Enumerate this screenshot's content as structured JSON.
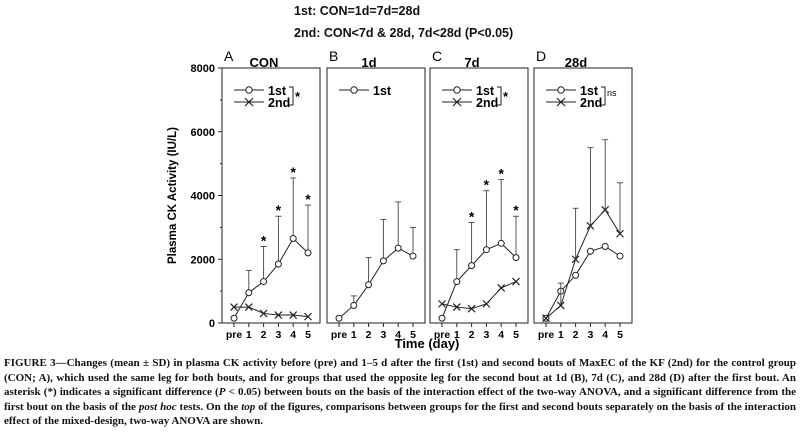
{
  "comparisons": {
    "line1": "1st: CON=1d=7d=28d",
    "line2": "2nd: CON<7d & 28d, 7d<28d (P<0.05)"
  },
  "chart_data": {
    "type": "line",
    "ylabel": "Plasma CK Activity (IU/L)",
    "xlabel": "Time (day)",
    "ylim": [
      0,
      8000
    ],
    "yticks": [
      "0",
      "2000",
      "4000",
      "6000",
      "8000"
    ],
    "xticks": [
      "pre",
      "1",
      "2",
      "3",
      "4",
      "5"
    ],
    "panels": [
      {
        "letter": "A",
        "title": "CON",
        "legend": [
          "1st",
          "2nd"
        ],
        "legend_mark": "*",
        "series": [
          {
            "name": "1st",
            "marker": "circle",
            "values": [
              150,
              950,
              1300,
              1850,
              2650,
              2200
            ],
            "sd": [
              0,
              700,
              1100,
              1500,
              1900,
              1500
            ],
            "stars": [
              false,
              false,
              true,
              true,
              true,
              true
            ]
          },
          {
            "name": "2nd",
            "marker": "cross",
            "values": [
              500,
              500,
              300,
              250,
              250,
              200
            ],
            "sd": [
              0,
              0,
              0,
              0,
              0,
              0
            ],
            "stars": [
              false,
              false,
              false,
              false,
              false,
              false
            ]
          }
        ]
      },
      {
        "letter": "B",
        "title": "1d",
        "legend": [
          "1st"
        ],
        "legend_mark": "",
        "series": [
          {
            "name": "1st",
            "marker": "circle",
            "values": [
              150,
              550,
              1200,
              1950,
              2350,
              2100
            ],
            "sd": [
              0,
              300,
              850,
              1300,
              1450,
              900
            ],
            "stars": [
              false,
              false,
              false,
              false,
              false,
              false
            ]
          }
        ]
      },
      {
        "letter": "C",
        "title": "7d",
        "legend": [
          "1st",
          "2nd"
        ],
        "legend_mark": "*",
        "series": [
          {
            "name": "1st",
            "marker": "circle",
            "values": [
              150,
              1300,
              1800,
              2300,
              2500,
              2050
            ],
            "sd": [
              0,
              1000,
              1350,
              1850,
              2000,
              1300
            ],
            "stars": [
              false,
              false,
              true,
              true,
              true,
              true
            ]
          },
          {
            "name": "2nd",
            "marker": "cross",
            "values": [
              600,
              500,
              450,
              600,
              1100,
              1300
            ],
            "sd": [
              0,
              0,
              0,
              0,
              0,
              0
            ],
            "stars": [
              false,
              false,
              false,
              false,
              false,
              false
            ]
          }
        ]
      },
      {
        "letter": "D",
        "title": "28d",
        "legend": [
          "1st",
          "2nd"
        ],
        "legend_mark": "ns",
        "series": [
          {
            "name": "1st",
            "marker": "circle",
            "values": [
              150,
              1000,
              1500,
              2250,
              2400,
              2100
            ],
            "sd": [
              0,
              0,
              0,
              0,
              0,
              0
            ],
            "stars": [
              false,
              false,
              false,
              false,
              false,
              false
            ]
          },
          {
            "name": "2nd",
            "marker": "cross",
            "values": [
              150,
              550,
              2000,
              3050,
              3550,
              2800
            ],
            "sd": [
              0,
              700,
              1600,
              2450,
              2200,
              1600
            ],
            "stars": [
              false,
              false,
              false,
              false,
              false,
              false
            ]
          }
        ]
      }
    ]
  },
  "caption": {
    "lead": "FIGURE 3—Changes (mean ± SD) in plasma CK activity before (pre) and 1–5 d after the first (1st) and second bouts of MaxEC of the KF (2nd) for the control group (CON; A), which used the same leg for both bouts, and for groups that used the opposite leg for the second bout at 1d (B), 7d (C), and 28d (D) after the first bout. An asterisk (*) indicates a significant difference (",
    "p_symbol": "P",
    "mid": " < 0.05) between bouts on the basis of the interaction effect of the two-way ANOVA, and a significant difference from the first bout on the basis of the ",
    "post_hoc": "post hoc",
    "mid2": " tests. On the ",
    "top_word": "top",
    "tail": " of the figures, comparisons between groups for the first and second bouts separately on the basis of the interaction effect of the mixed-design, two-way ANOVA are shown."
  }
}
